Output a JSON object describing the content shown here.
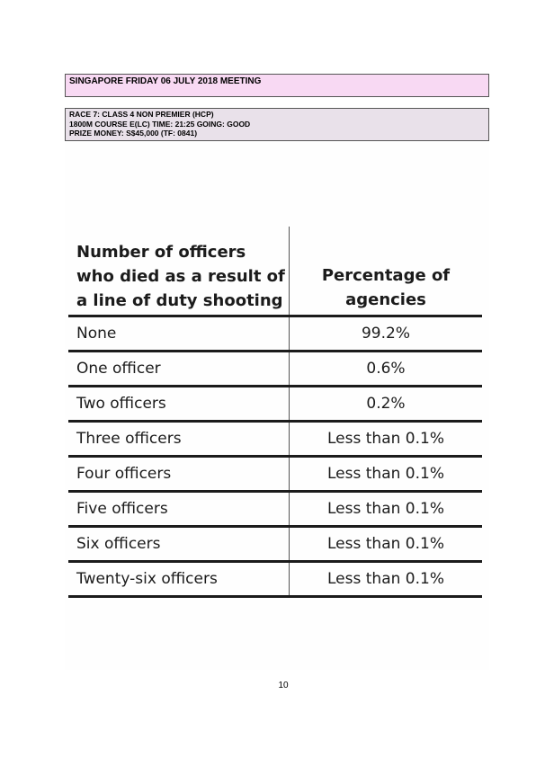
{
  "meeting": {
    "title": "SINGAPORE FRIDAY 06 JULY 2018 MEETING"
  },
  "race": {
    "line1": "RACE 7: CLASS 4 NON PREMIER (HCP)",
    "line2": "1800M COURSE E(LC)  TIME: 21:25  GOING: GOOD",
    "line3": "PRIZE MONEY: S$45,000  (TF: 0841)"
  },
  "table": {
    "header_left": [
      "Number of officers",
      "who died as a result of",
      "a line of duty shooting"
    ],
    "header_right": [
      "Percentage of",
      "agencies"
    ],
    "rows": [
      {
        "officers": "None",
        "percentage": "99.2%"
      },
      {
        "officers": "One officer",
        "percentage": "0.6%"
      },
      {
        "officers": "Two officers",
        "percentage": "0.2%"
      },
      {
        "officers": "Three officers",
        "percentage": "Less than 0.1%"
      },
      {
        "officers": "Four officers",
        "percentage": "Less than 0.1%"
      },
      {
        "officers": "Five officers",
        "percentage": "Less than 0.1%"
      },
      {
        "officers": "Six officers",
        "percentage": "Less than 0.1%"
      },
      {
        "officers": "Twenty-six officers",
        "percentage": "Less than 0.1%"
      }
    ]
  },
  "page": {
    "number": "10"
  }
}
